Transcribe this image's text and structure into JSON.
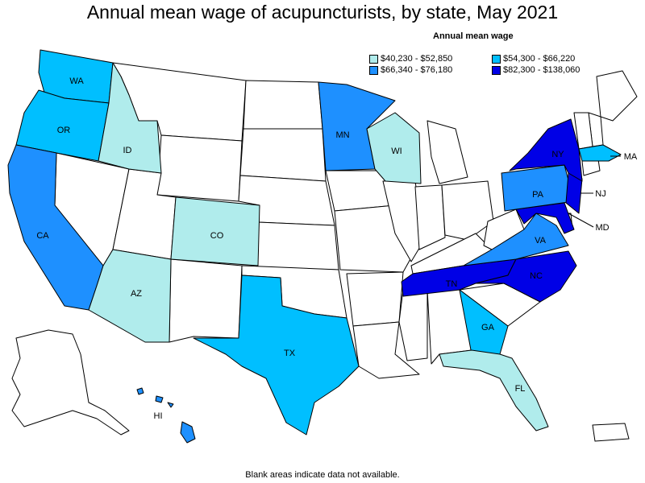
{
  "title": "Annual mean wage of acupuncturists, by state, May 2021",
  "legend": {
    "title": "Annual mean wage",
    "items": [
      {
        "label": "$40,230 - $52,850",
        "color": "#b0ecec"
      },
      {
        "label": "$54,300 - $66,220",
        "color": "#00bfff"
      },
      {
        "label": "$66,340 - $76,180",
        "color": "#1e90ff"
      },
      {
        "label": "$82,300 - $138,060",
        "color": "#0000e6"
      }
    ]
  },
  "footnote": "Blank areas indicate data not available.",
  "states": {
    "WA": {
      "label": "WA",
      "class": "$54,300 - $66,220"
    },
    "OR": {
      "label": "OR",
      "class": "$54,300 - $66,220"
    },
    "ID": {
      "label": "ID",
      "class": "$40,230 - $52,850"
    },
    "CA": {
      "label": "CA",
      "class": "$66,340 - $76,180"
    },
    "AZ": {
      "label": "AZ",
      "class": "$40,230 - $52,850"
    },
    "CO": {
      "label": "CO",
      "class": "$40,230 - $52,850"
    },
    "TX": {
      "label": "TX",
      "class": "$54,300 - $66,220"
    },
    "MN": {
      "label": "MN",
      "class": "$66,340 - $76,180"
    },
    "WI": {
      "label": "WI",
      "class": "$40,230 - $52,850"
    },
    "TN": {
      "label": "TN",
      "class": "$82,300 - $138,060"
    },
    "GA": {
      "label": "GA",
      "class": "$54,300 - $66,220"
    },
    "FL": {
      "label": "FL",
      "class": "$40,230 - $52,850"
    },
    "NC": {
      "label": "NC",
      "class": "$82,300 - $138,060"
    },
    "VA": {
      "label": "VA",
      "class": "$66,340 - $76,180"
    },
    "MD": {
      "label": "MD",
      "class": "$82,300 - $138,060"
    },
    "PA": {
      "label": "PA",
      "class": "$66,340 - $76,180"
    },
    "NJ": {
      "label": "NJ",
      "class": "$82,300 - $138,060"
    },
    "NY": {
      "label": "NY",
      "class": "$82,300 - $138,060"
    },
    "MA": {
      "label": "MA",
      "class": "$54,300 - $66,220"
    },
    "HI": {
      "label": "HI",
      "class": "$66,340 - $76,180"
    }
  },
  "colors": {
    "no_data": "#ffffff",
    "border": "#000000"
  }
}
